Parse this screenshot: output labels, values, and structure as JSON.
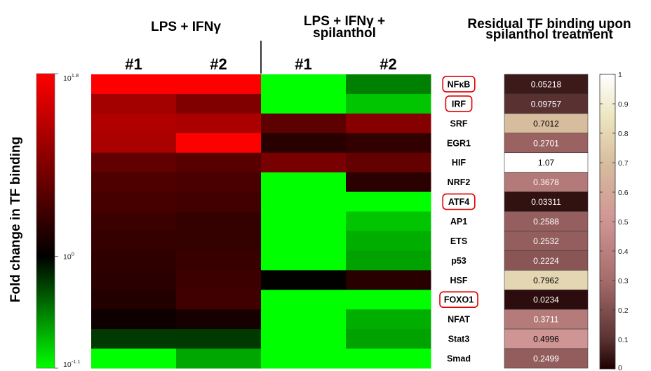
{
  "chart_data": [
    {
      "type": "heatmap",
      "title": "",
      "group_headers": [
        "LPS + IFNγ",
        "LPS + IFNγ + spilanthol"
      ],
      "columns": [
        "#1",
        "#2",
        "#1",
        "#2"
      ],
      "rows": [
        "NFκB",
        "IRF",
        "SRF",
        "EGR1",
        "HIF",
        "NRF2",
        "ATF4",
        "AP1",
        "ETS",
        "p53",
        "HSF",
        "FOXO1",
        "NFAT",
        "Stat3",
        "Smad"
      ],
      "highlighted_rows": [
        "NFκB",
        "IRF",
        "ATF4",
        "FOXO1"
      ],
      "values_log10": [
        [
          1.8,
          1.8,
          -1.1,
          -0.55
        ],
        [
          1.15,
          0.9,
          -1.1,
          -0.85
        ],
        [
          1.25,
          1.2,
          0.65,
          0.95
        ],
        [
          1.2,
          1.8,
          0.28,
          0.35
        ],
        [
          0.68,
          0.62,
          0.85,
          0.7
        ],
        [
          0.55,
          0.52,
          -1.1,
          0.3
        ],
        [
          0.5,
          0.47,
          -1.1,
          -1.1
        ],
        [
          0.42,
          0.37,
          -1.1,
          -0.85
        ],
        [
          0.37,
          0.37,
          -1.1,
          -0.75
        ],
        [
          0.33,
          0.4,
          -1.1,
          -0.7
        ],
        [
          0.3,
          0.43,
          0.02,
          0.28
        ],
        [
          0.25,
          0.45,
          -1.1,
          -1.1
        ],
        [
          0.1,
          0.16,
          -1.1,
          -0.75
        ],
        [
          -0.25,
          -0.25,
          -1.1,
          -0.7
        ],
        [
          -1.1,
          -0.72,
          -1.1,
          -1.1
        ]
      ],
      "colorbar": {
        "label": "Fold change in TF binding",
        "ticks": [
          {
            "value": 1.8,
            "base": "10",
            "exp": "1.8"
          },
          {
            "value": 0,
            "base": "10",
            "exp": "0"
          },
          {
            "value": -1.1,
            "base": "10",
            "exp": "-1.1"
          }
        ],
        "range": [
          -1.1,
          1.8
        ],
        "colors": {
          "low": "#00ff00",
          "mid": "#000000",
          "high": "#ff0000"
        }
      }
    },
    {
      "type": "heatmap",
      "title": "Residual TF binding upon spilanthol treatment",
      "rows": [
        "NFκB",
        "IRF",
        "SRF",
        "EGR1",
        "HIF",
        "NRF2",
        "ATF4",
        "AP1",
        "ETS",
        "p53",
        "HSF",
        "FOXO1",
        "NFAT",
        "Stat3",
        "Smad"
      ],
      "labels": [
        "0.05218",
        "0.09757",
        "0.7012",
        "0.2701",
        "1.07",
        "0.3678",
        "0.03311",
        "0.2588",
        "0.2532",
        "0.2224",
        "0.7962",
        "0.0234",
        "0.3711",
        "0.4996",
        "0.2499"
      ],
      "values": [
        0.05218,
        0.09757,
        0.7012,
        0.2701,
        1.07,
        0.3678,
        0.03311,
        0.2588,
        0.2532,
        0.2224,
        0.7962,
        0.0234,
        0.3711,
        0.4996,
        0.2499
      ],
      "colorbar": {
        "range": [
          0,
          1
        ],
        "ticks": [
          "0",
          "0.1",
          "0.2",
          "0.3",
          "0.4",
          "0.5",
          "0.6",
          "0.7",
          "0.8",
          "0.9",
          "1"
        ],
        "colormap": "pink"
      }
    }
  ]
}
